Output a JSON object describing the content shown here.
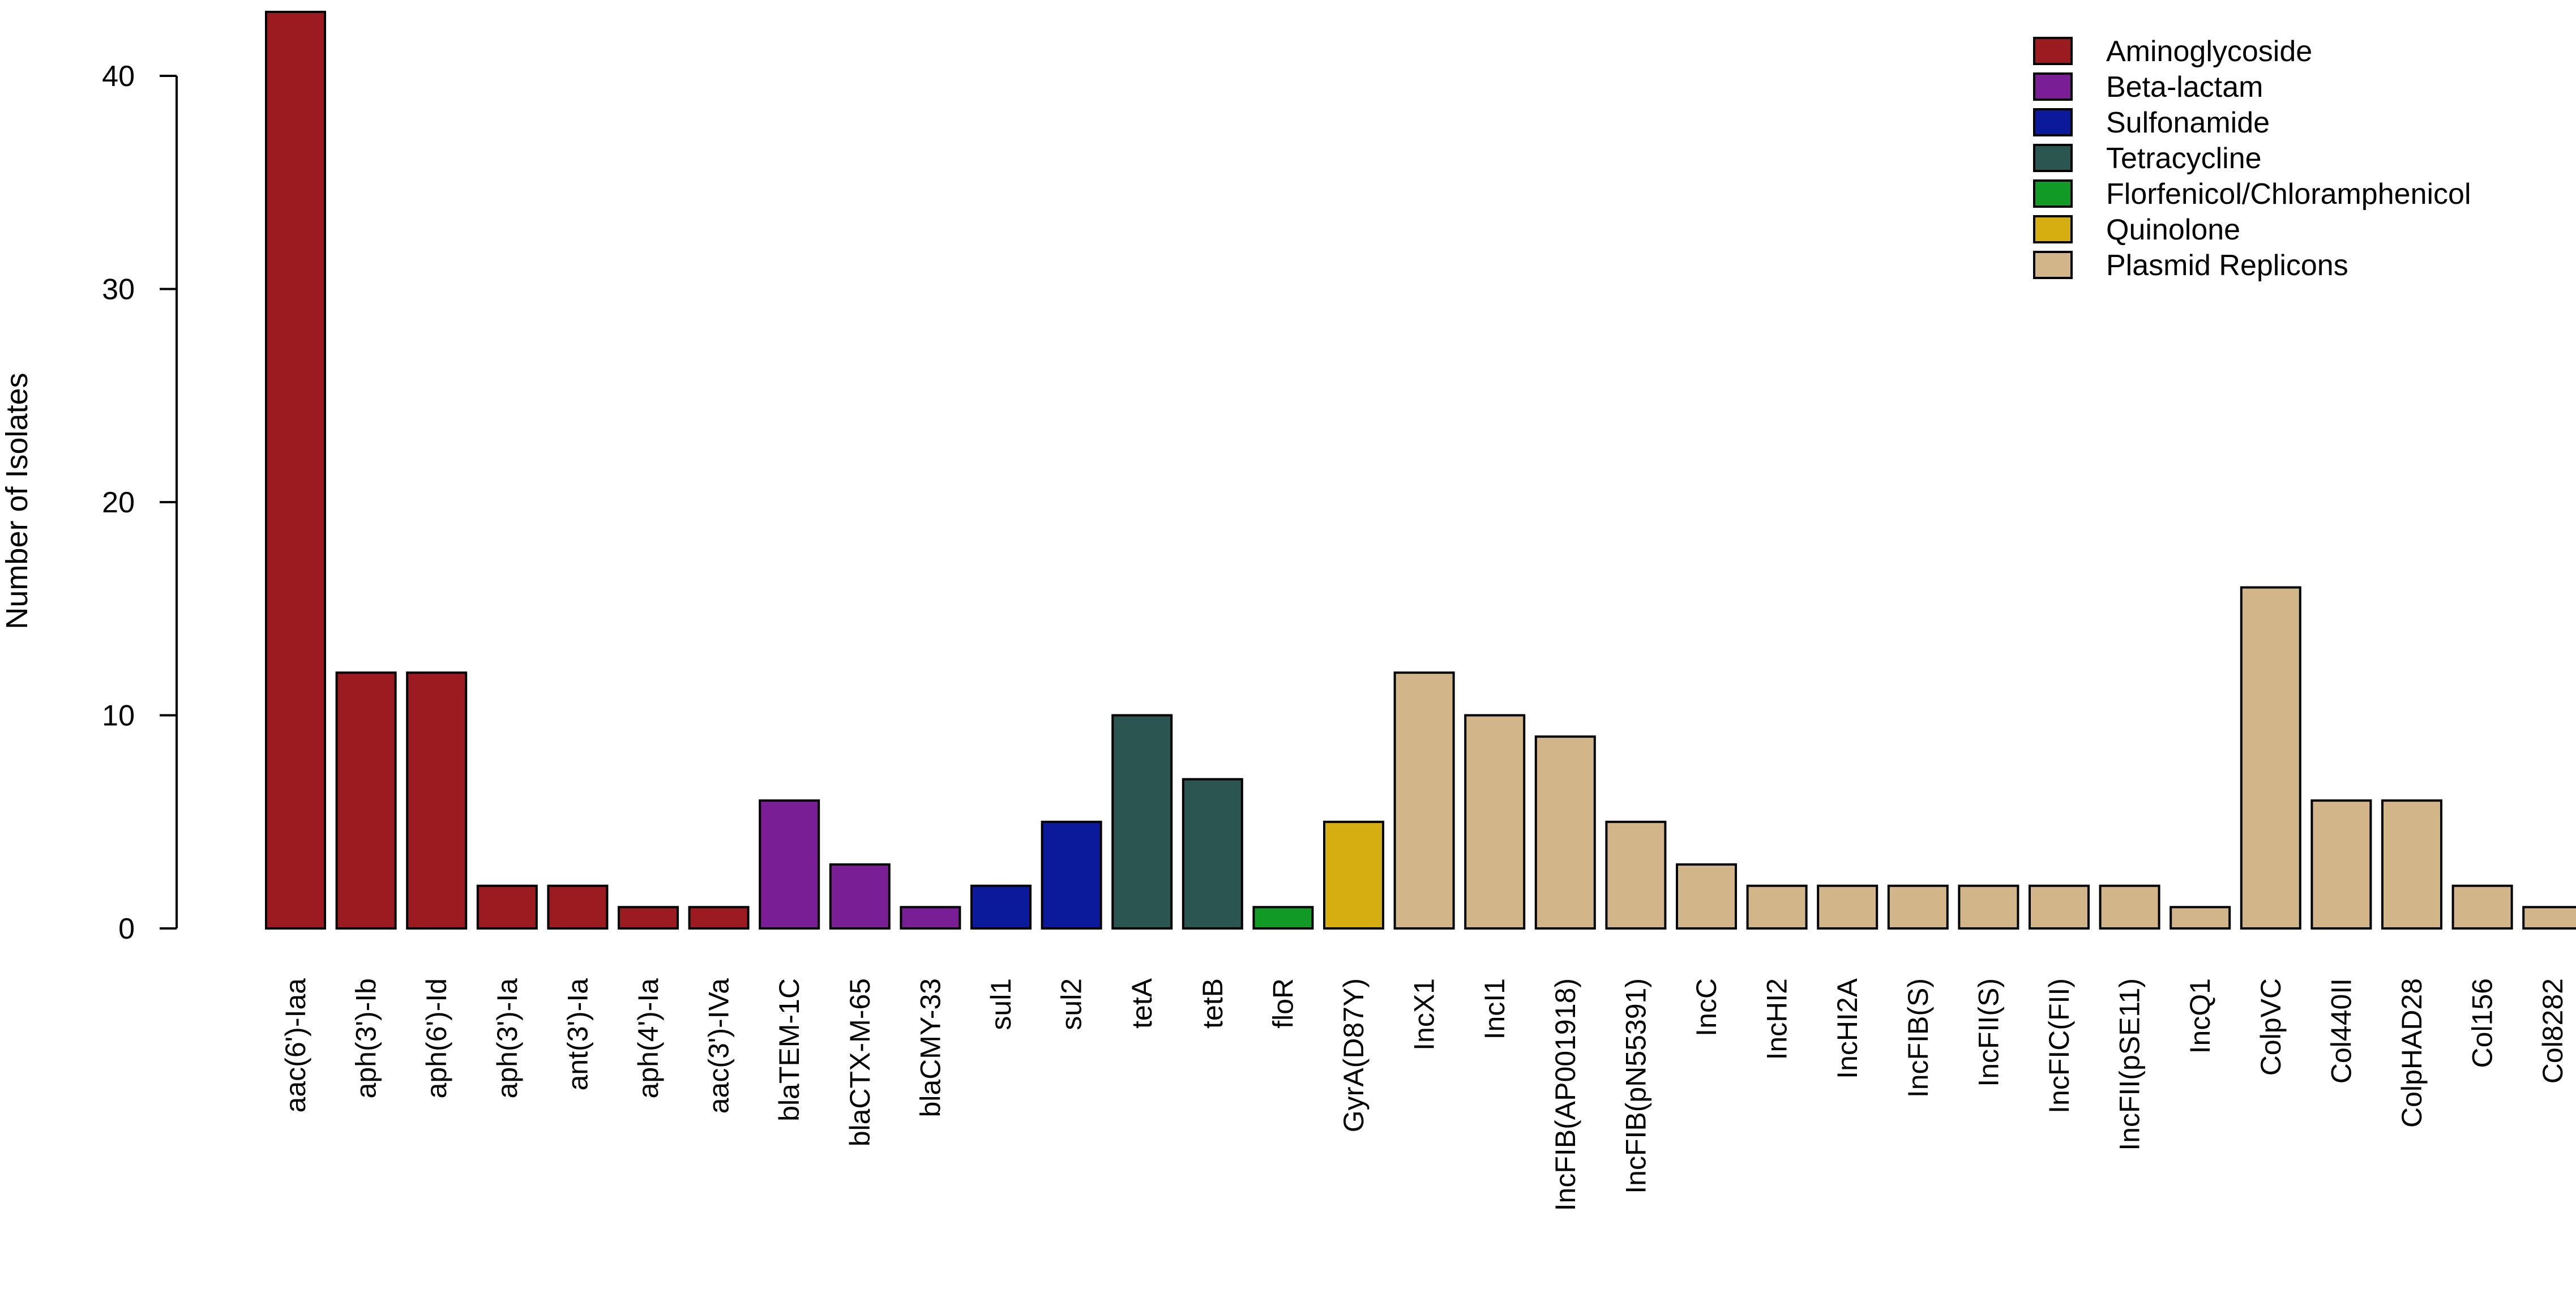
{
  "chart_data": {
    "type": "bar",
    "ylabel": "Number of Isolates",
    "xlabel": "",
    "ylim": [
      0,
      43
    ],
    "yticks": [
      0,
      10,
      20,
      30,
      40
    ],
    "grid": false,
    "legend_position": "top-right",
    "legend": [
      {
        "name": "Aminoglycoside",
        "color": "#9B1B20"
      },
      {
        "name": "Beta-lactam",
        "color": "#7A1E95"
      },
      {
        "name": "Sulfonamide",
        "color": "#0A1A9A"
      },
      {
        "name": "Tetracycline",
        "color": "#2B5550"
      },
      {
        "name": "Florfenicol/Chloramphenicol",
        "color": "#129A26"
      },
      {
        "name": "Quinolone",
        "color": "#D7AE12"
      },
      {
        "name": "Plasmid Replicons",
        "color": "#D2B68A"
      }
    ],
    "categories": [
      "aac(6')-Iaa",
      "aph(3')-Ib",
      "aph(6')-Id",
      "aph(3')-Ia",
      "ant(3')-Ia",
      "aph(4')-Ia",
      "aac(3')-IVa",
      "blaTEM-1C",
      "blaCTX-M-65",
      "blaCMY-33",
      "sul1",
      "sul2",
      "tetA",
      "tetB",
      "floR",
      "GyrA(D87Y)",
      "IncX1",
      "IncI1",
      "IncFIB(AP001918)",
      "IncFIB(pN55391)",
      "IncC",
      "IncHI2",
      "IncHI2A",
      "IncFIB(S)",
      "IncFII(S)",
      "IncFIC(FII)",
      "IncFII(pSE11)",
      "IncQ1",
      "ColpVC",
      "Col440II",
      "ColpHAD28",
      "Col156",
      "Col8282"
    ],
    "values": [
      43,
      12,
      12,
      2,
      2,
      1,
      1,
      6,
      3,
      1,
      2,
      5,
      10,
      7,
      1,
      5,
      12,
      10,
      9,
      5,
      3,
      2,
      2,
      2,
      2,
      2,
      2,
      1,
      16,
      6,
      6,
      2,
      1
    ],
    "groups": [
      "Aminoglycoside",
      "Aminoglycoside",
      "Aminoglycoside",
      "Aminoglycoside",
      "Aminoglycoside",
      "Aminoglycoside",
      "Aminoglycoside",
      "Beta-lactam",
      "Beta-lactam",
      "Beta-lactam",
      "Sulfonamide",
      "Sulfonamide",
      "Tetracycline",
      "Tetracycline",
      "Florfenicol/Chloramphenicol",
      "Quinolone",
      "Plasmid Replicons",
      "Plasmid Replicons",
      "Plasmid Replicons",
      "Plasmid Replicons",
      "Plasmid Replicons",
      "Plasmid Replicons",
      "Plasmid Replicons",
      "Plasmid Replicons",
      "Plasmid Replicons",
      "Plasmid Replicons",
      "Plasmid Replicons",
      "Plasmid Replicons",
      "Plasmid Replicons",
      "Plasmid Replicons",
      "Plasmid Replicons",
      "Plasmid Replicons",
      "Plasmid Replicons"
    ]
  }
}
